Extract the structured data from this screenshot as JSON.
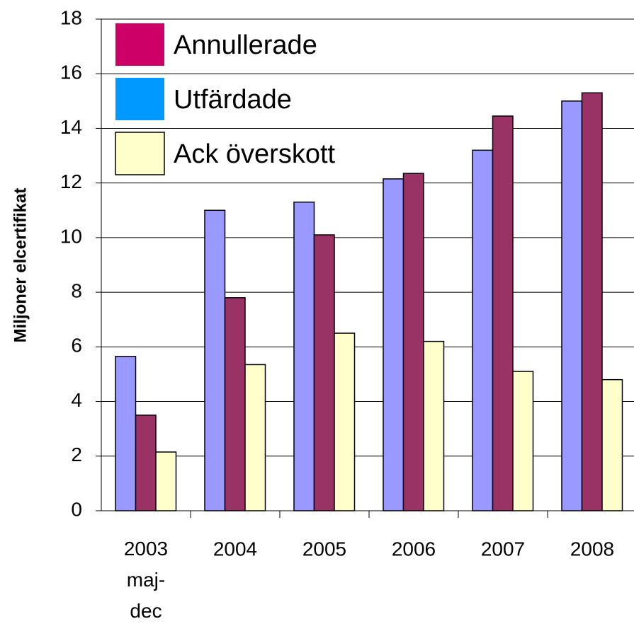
{
  "chart_data": {
    "type": "bar",
    "y_label": "Miljoner elcertifikat",
    "categories": [
      "2003\nmaj-\ndec",
      "2004",
      "2005",
      "2006",
      "2007",
      "2008"
    ],
    "series": [
      {
        "name": "Utfärdade",
        "color": "#9999ff",
        "legend_color": "#0099ff",
        "values": [
          5.65,
          11.0,
          11.3,
          12.15,
          13.2,
          15.0
        ]
      },
      {
        "name": "Annullerade",
        "color": "#993366",
        "legend_color": "#cc0066",
        "values": [
          3.5,
          7.8,
          10.1,
          12.35,
          14.45,
          15.3
        ]
      },
      {
        "name": "Ack överskott",
        "color": "#ffffcc",
        "legend_color": "#ffffcc",
        "values": [
          2.15,
          5.35,
          6.5,
          6.2,
          5.1,
          4.8
        ]
      }
    ],
    "legend_order": [
      1,
      0,
      2
    ],
    "ylim": [
      0,
      18
    ],
    "yticks": [
      0,
      2,
      4,
      6,
      8,
      10,
      12,
      14,
      16,
      18
    ],
    "grid": true
  }
}
